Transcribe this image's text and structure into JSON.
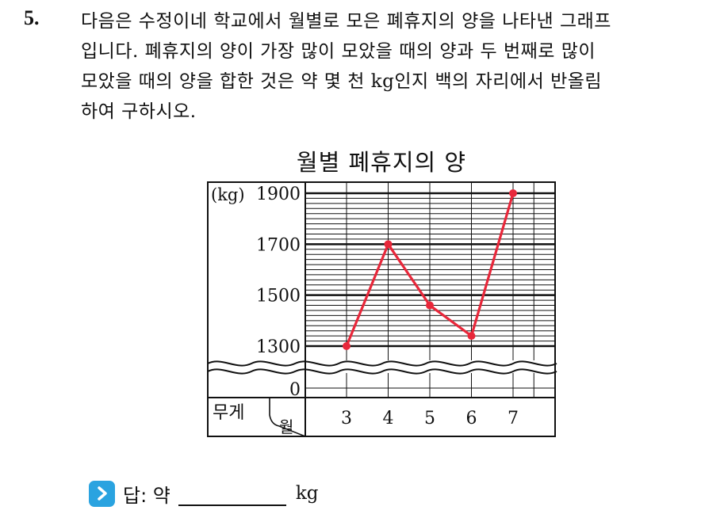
{
  "question": {
    "number": "5.",
    "lines": [
      "다음은 수정이네 학교에서 월별로 모은 폐휴지의 양을 나타낸 그래프",
      "입니다. 폐휴지의 양이 가장 많이 모았을 때의 양과 두 번째로 많이",
      "모았을 때의 양을 합한 것은 약 몇 천 kg인지 백의 자리에서 반올림",
      "하여 구하시오."
    ]
  },
  "chart_data": {
    "type": "line",
    "title": "월별 폐휴지의 양",
    "unit_label": "(kg)",
    "xlabel": "월",
    "ylabel": "무게",
    "categories": [
      "3",
      "4",
      "5",
      "6",
      "7"
    ],
    "y_tick_labels": [
      "1900",
      "1700",
      "1500",
      "1300",
      "0"
    ],
    "axis_break": true,
    "ylim": [
      1300,
      1900
    ],
    "series": [
      {
        "values": [
          1300,
          1700,
          1460,
          1340,
          1900
        ],
        "color": "#e8273a"
      }
    ],
    "grid": true
  },
  "answer": {
    "label": "답: 약",
    "unit": "kg",
    "icon": "chevron-right-icon",
    "icon_color": "#2aa3e0"
  }
}
